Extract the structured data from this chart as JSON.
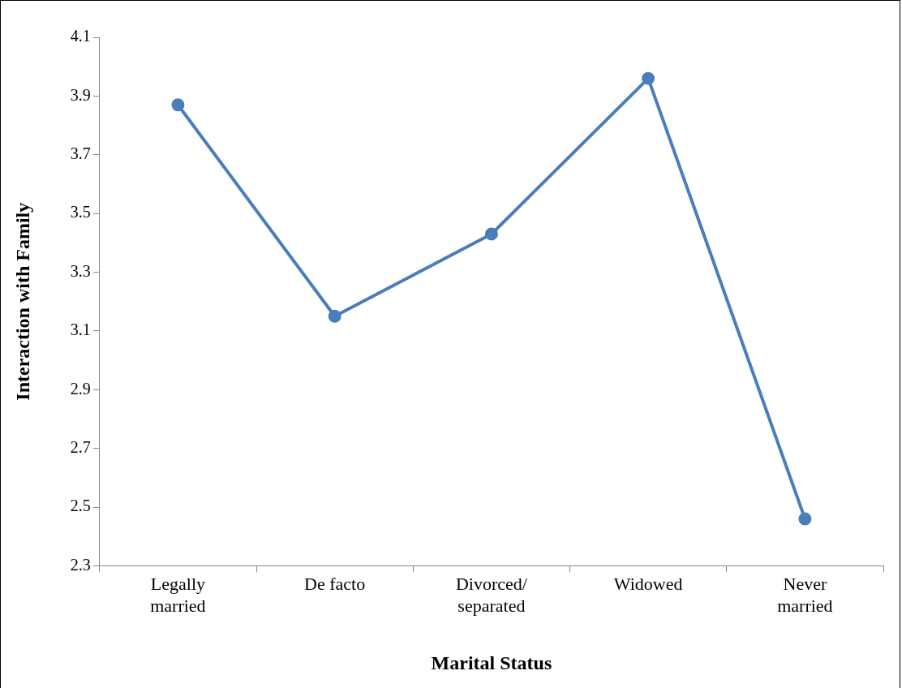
{
  "chart_data": {
    "type": "line",
    "xlabel": "Marital Status",
    "ylabel": "Interaction with Family",
    "categories": [
      "Legally\nmarried",
      "De facto",
      "Divorced/\nseparated",
      "Widowed",
      "Never\nmarried"
    ],
    "series": [
      {
        "color": "#4a7ebb",
        "values": [
          3.87,
          3.15,
          3.43,
          3.96,
          2.46
        ]
      }
    ],
    "ylim": [
      2.3,
      4.1
    ],
    "yticks": [
      2.3,
      2.5,
      2.7,
      2.9,
      3.1,
      3.3,
      3.5,
      3.7,
      3.9,
      4.1
    ],
    "grid": false,
    "legend": false,
    "marker": "circle",
    "line_style": "solid"
  }
}
